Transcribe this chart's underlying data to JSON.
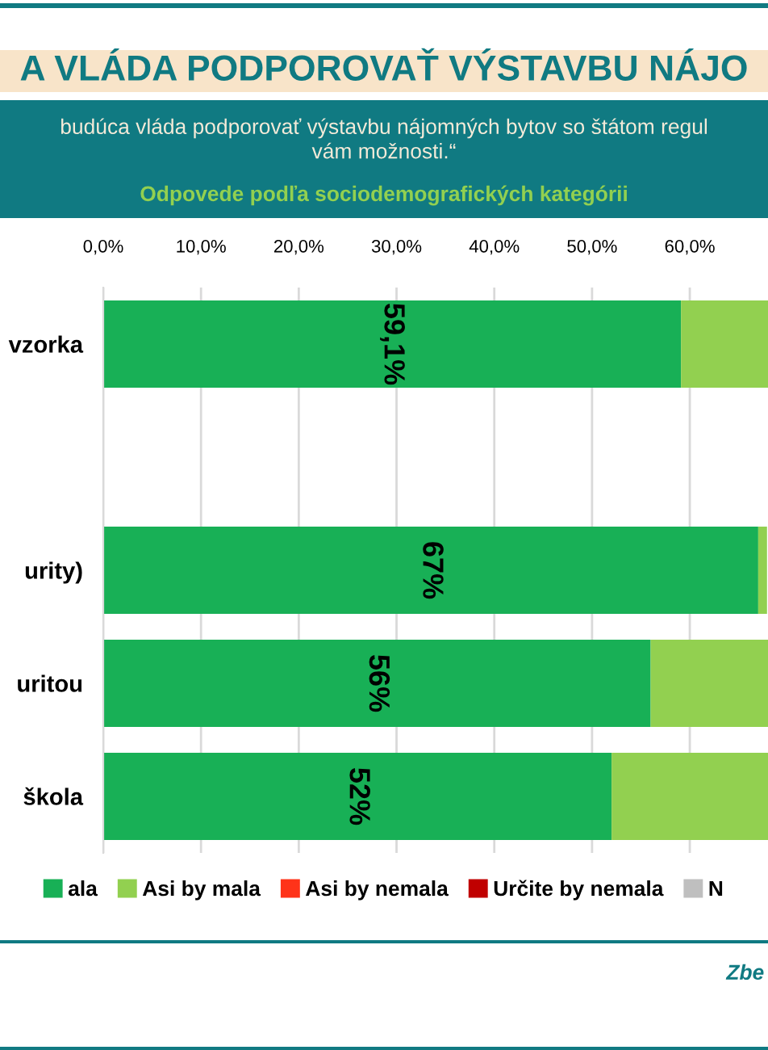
{
  "chart_data": {
    "type": "bar",
    "orientation": "horizontal",
    "stacked": true,
    "title": "A VLÁDA PODPOROVAŤ VÝSTAVBU NÁJO",
    "subtitle": "budúca vláda podporovať výstavbu nájomných bytov so štátom regul\nvám možnosti.“",
    "annotations": [
      "Odpovede podľa sociodemografických kategórii",
      "Zbe"
    ],
    "categories": [
      "vzorka",
      null,
      "urity)",
      "uritou",
      "škola"
    ],
    "series": [
      {
        "name": "ala",
        "color": "#18b056",
        "values": [
          59.1,
          null,
          67,
          56,
          52
        ],
        "value_labels": [
          "59,1%",
          null,
          "67%",
          "56%",
          "52%"
        ]
      },
      {
        "name": "Asi by mala",
        "color": "#92d050",
        "values": [
          8.9,
          null,
          0.9,
          12,
          16
        ]
      },
      {
        "name": "Asi by nemala",
        "color": "#ff3319",
        "values": [
          null,
          null,
          null,
          null,
          null
        ]
      },
      {
        "name": "Určite by nemala",
        "color": "#c00000",
        "values": [
          null,
          null,
          null,
          null,
          null
        ]
      },
      {
        "name": "N",
        "color": "#bfbfbf",
        "values": [
          null,
          null,
          null,
          null,
          null
        ]
      }
    ],
    "xlim": [
      0,
      68
    ],
    "xticks": [
      {
        "value": 0,
        "label": "0,0%"
      },
      {
        "value": 10,
        "label": "10,0%"
      },
      {
        "value": 20,
        "label": "20,0%"
      },
      {
        "value": 30,
        "label": "30,0%"
      },
      {
        "value": 40,
        "label": "40,0%"
      },
      {
        "value": 50,
        "label": "50,0%"
      },
      {
        "value": 60,
        "label": "60,0%"
      }
    ],
    "grid": "x",
    "legend": "bottom"
  }
}
